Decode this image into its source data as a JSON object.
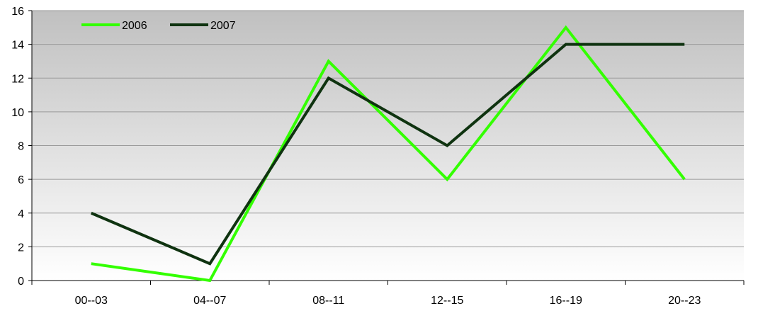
{
  "chart_data": {
    "type": "line",
    "title": "",
    "xlabel": "",
    "ylabel": "",
    "categories": [
      "00--03",
      "04--07",
      "08--11",
      "12--15",
      "16--19",
      "20--23"
    ],
    "ylim": [
      0,
      16
    ],
    "yticks": [
      0,
      2,
      4,
      6,
      8,
      10,
      12,
      14,
      16
    ],
    "grid": true,
    "legend_position": "top-left",
    "background_gradient": [
      "#c0c0c0",
      "#ffffff"
    ],
    "series": [
      {
        "name": "2006",
        "color": "#33ff00",
        "values": [
          1,
          0,
          13,
          6,
          15,
          6
        ]
      },
      {
        "name": "2007",
        "color": "#0f3310",
        "values": [
          4,
          1,
          12,
          8,
          14,
          14
        ]
      }
    ]
  }
}
